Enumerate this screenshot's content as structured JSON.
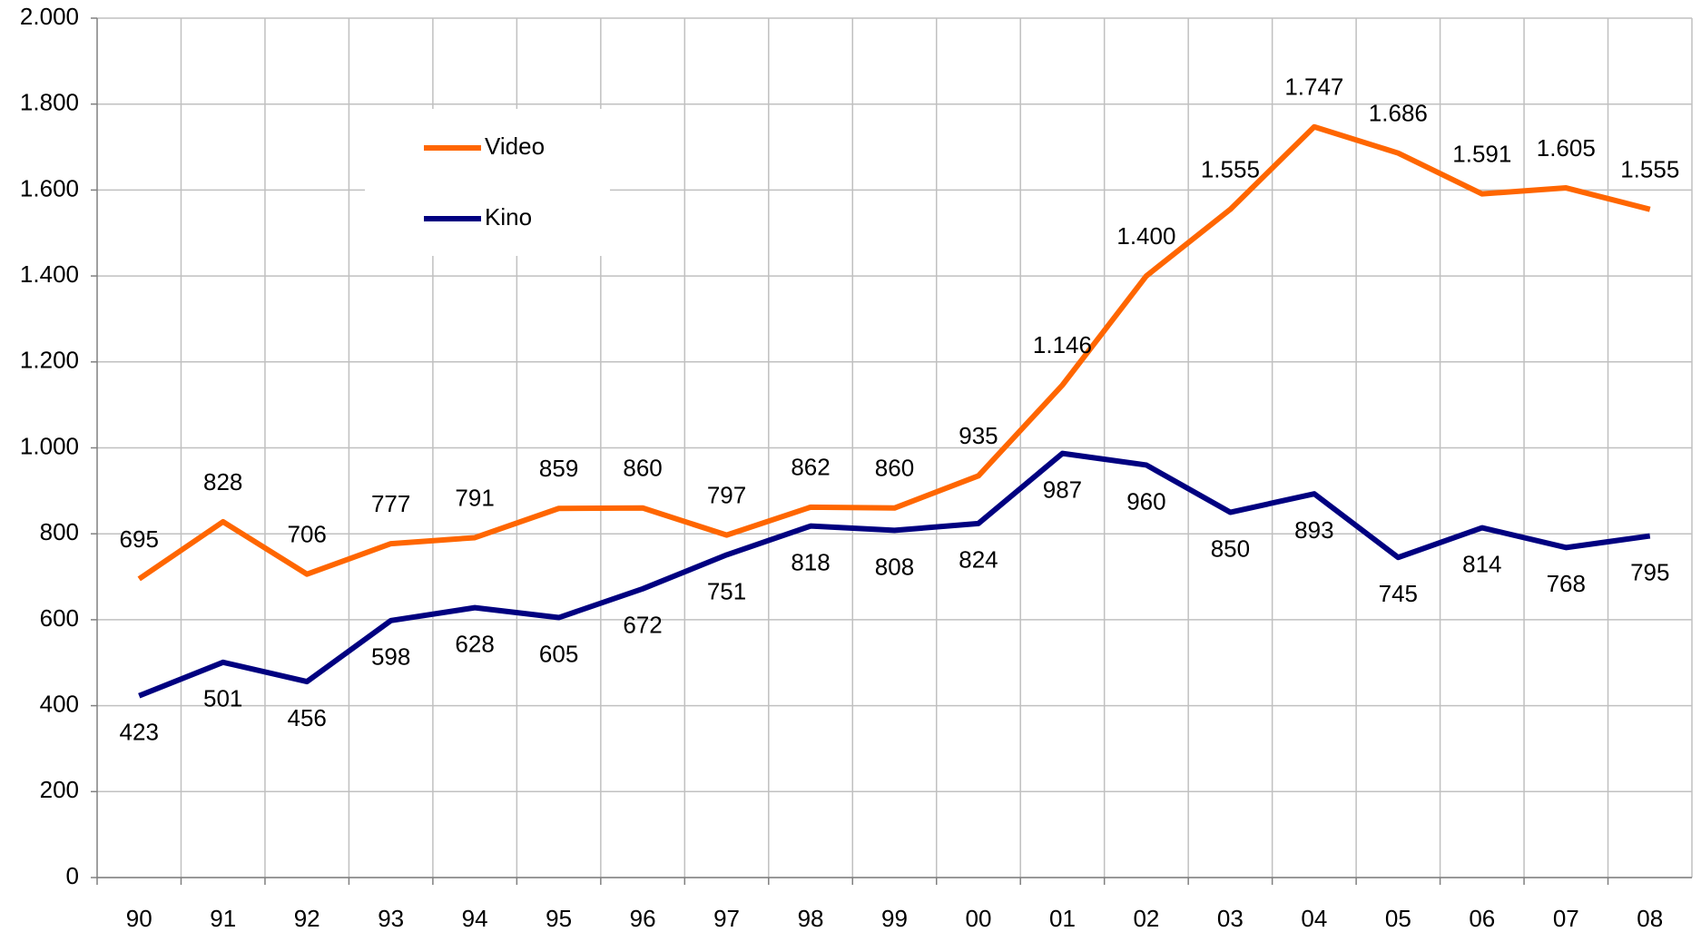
{
  "chart_data": {
    "type": "line",
    "categories": [
      "90",
      "91",
      "92",
      "93",
      "94",
      "95",
      "96",
      "97",
      "98",
      "99",
      "00",
      "01",
      "02",
      "03",
      "04",
      "05",
      "06",
      "07",
      "08"
    ],
    "series": [
      {
        "name": "Video",
        "color": "#ff6600",
        "values": [
          695,
          828,
          706,
          777,
          791,
          859,
          860,
          797,
          862,
          860,
          935,
          1146,
          1400,
          1555,
          1747,
          1686,
          1591,
          1605,
          1555
        ],
        "value_labels": [
          "695",
          "828",
          "706",
          "777",
          "791",
          "859",
          "860",
          "797",
          "862",
          "860",
          "935",
          "1.146",
          "1.400",
          "1.555",
          "1.747",
          "1.686",
          "1.591",
          "1.605",
          "1.555"
        ]
      },
      {
        "name": "Kino",
        "color": "#000080",
        "values": [
          423,
          501,
          456,
          598,
          628,
          605,
          672,
          751,
          818,
          808,
          824,
          987,
          960,
          850,
          893,
          745,
          814,
          768,
          795
        ]
      }
    ],
    "ylim": [
      0,
      2000
    ],
    "yticks": [
      0,
      200,
      400,
      600,
      800,
      {
        "value": 1000,
        "label": "1.000"
      },
      {
        "value": 1200,
        "label": "1.200"
      },
      {
        "value": 1400,
        "label": "1.400"
      },
      {
        "value": 1600,
        "label": "1.600"
      },
      {
        "value": 1800,
        "label": "1.800"
      },
      {
        "value": 2000,
        "label": "2.000"
      }
    ],
    "grid": true
  }
}
